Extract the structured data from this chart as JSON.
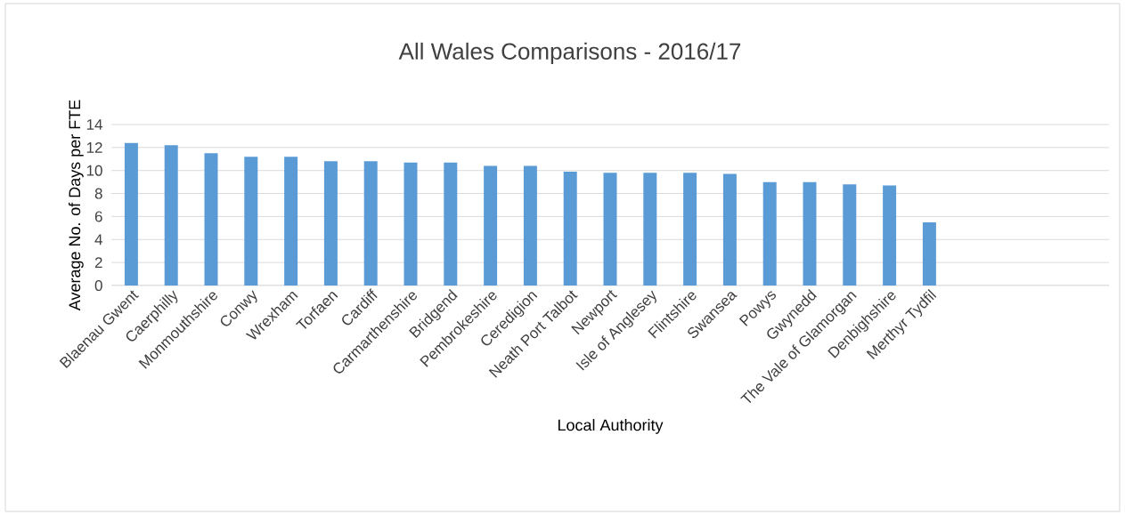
{
  "chart_data": {
    "type": "bar",
    "title": "All Wales Comparisons - 2016/17",
    "xlabel": "Local Authority",
    "ylabel": "Average No. of Days per FTE",
    "categories": [
      "Blaenau Gwent",
      "Caerphilly",
      "Monmouthshire",
      "Conwy",
      "Wrexham",
      "Torfaen",
      "Cardiff",
      "Carmarthenshire",
      "Bridgend",
      "Pembrokeshire",
      "Ceredigion",
      "Neath Port Talbot",
      "Newport",
      "Isle of Anglesey",
      "Flintshire",
      "Swansea",
      "Powys",
      "Gwynedd",
      "The Vale of Glamorgan",
      "Denbighshire",
      "Merthyr Tydfil",
      null,
      null,
      null,
      null
    ],
    "values": [
      12.4,
      12.2,
      11.5,
      11.2,
      11.2,
      10.8,
      10.8,
      10.7,
      10.7,
      10.4,
      10.4,
      9.9,
      9.8,
      9.8,
      9.8,
      9.7,
      9.0,
      9.0,
      8.8,
      8.7,
      5.5,
      null,
      null,
      null,
      null
    ],
    "color": "#5b9bd5",
    "ylim": [
      0,
      14
    ],
    "yticks": [
      0,
      2,
      4,
      6,
      8,
      10,
      12,
      14
    ],
    "grid": "y"
  }
}
